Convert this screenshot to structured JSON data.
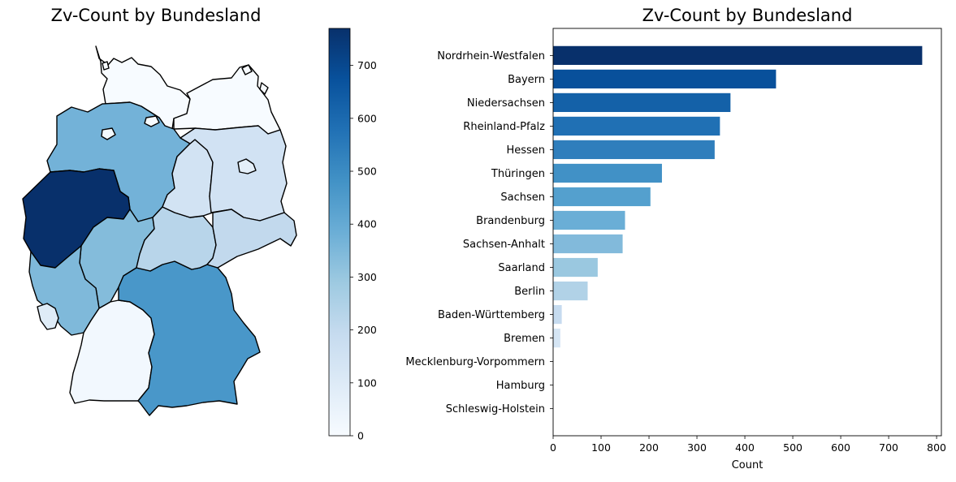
{
  "chart_data": [
    {
      "type": "choropleth",
      "title": "Zv-Count by Bundesland",
      "colormap": "Blues",
      "colorbar": {
        "min": 0,
        "max": 770,
        "ticks": [
          "0",
          "100",
          "200",
          "300",
          "400",
          "500",
          "600",
          "700"
        ]
      },
      "regions": [
        {
          "name": "Schleswig-Holstein",
          "value": 0
        },
        {
          "name": "Hamburg",
          "value": 0
        },
        {
          "name": "Mecklenburg-Vorpommern",
          "value": 0
        },
        {
          "name": "Bremen",
          "value": 15
        },
        {
          "name": "Niedersachsen",
          "value": 370
        },
        {
          "name": "Nordrhein-Westfalen",
          "value": 770
        },
        {
          "name": "Hessen",
          "value": 337
        },
        {
          "name": "Rheinland-Pfalz",
          "value": 348
        },
        {
          "name": "Saarland",
          "value": 93
        },
        {
          "name": "Baden-Württemberg",
          "value": 18
        },
        {
          "name": "Bayern",
          "value": 465
        },
        {
          "name": "Thüringen",
          "value": 227
        },
        {
          "name": "Sachsen",
          "value": 203
        },
        {
          "name": "Sachsen-Anhalt",
          "value": 145
        },
        {
          "name": "Berlin",
          "value": 72
        },
        {
          "name": "Brandenburg",
          "value": 150
        }
      ]
    },
    {
      "type": "bar",
      "orientation": "horizontal",
      "title": "Zv-Count by Bundesland",
      "xlabel": "Count",
      "ylabel": "",
      "xlim": [
        0,
        810
      ],
      "xticks": [
        "0",
        "100",
        "200",
        "300",
        "400",
        "500",
        "600",
        "700",
        "800"
      ],
      "categories": [
        "Nordrhein-Westfalen",
        "Bayern",
        "Niedersachsen",
        "Rheinland-Pfalz",
        "Hessen",
        "Thüringen",
        "Sachsen",
        "Brandenburg",
        "Sachsen-Anhalt",
        "Saarland",
        "Berlin",
        "Baden-Württemberg",
        "Bremen",
        "Mecklenburg-Vorpommern",
        "Hamburg",
        "Schleswig-Holstein"
      ],
      "values": [
        770,
        465,
        370,
        348,
        337,
        227,
        203,
        150,
        145,
        93,
        72,
        18,
        15,
        0,
        0,
        0
      ],
      "bar_colors": [
        "#08306b",
        "#08509b",
        "#1461a8",
        "#2070b4",
        "#2f7ebc",
        "#4191c6",
        "#54a0ce",
        "#6aaed6",
        "#82badb",
        "#9ac8e0",
        "#b1d2e7",
        "#c6dbef",
        "#d5e5f4",
        "#e3eef8",
        "#edf4fb",
        "#f7fbff"
      ]
    }
  ]
}
